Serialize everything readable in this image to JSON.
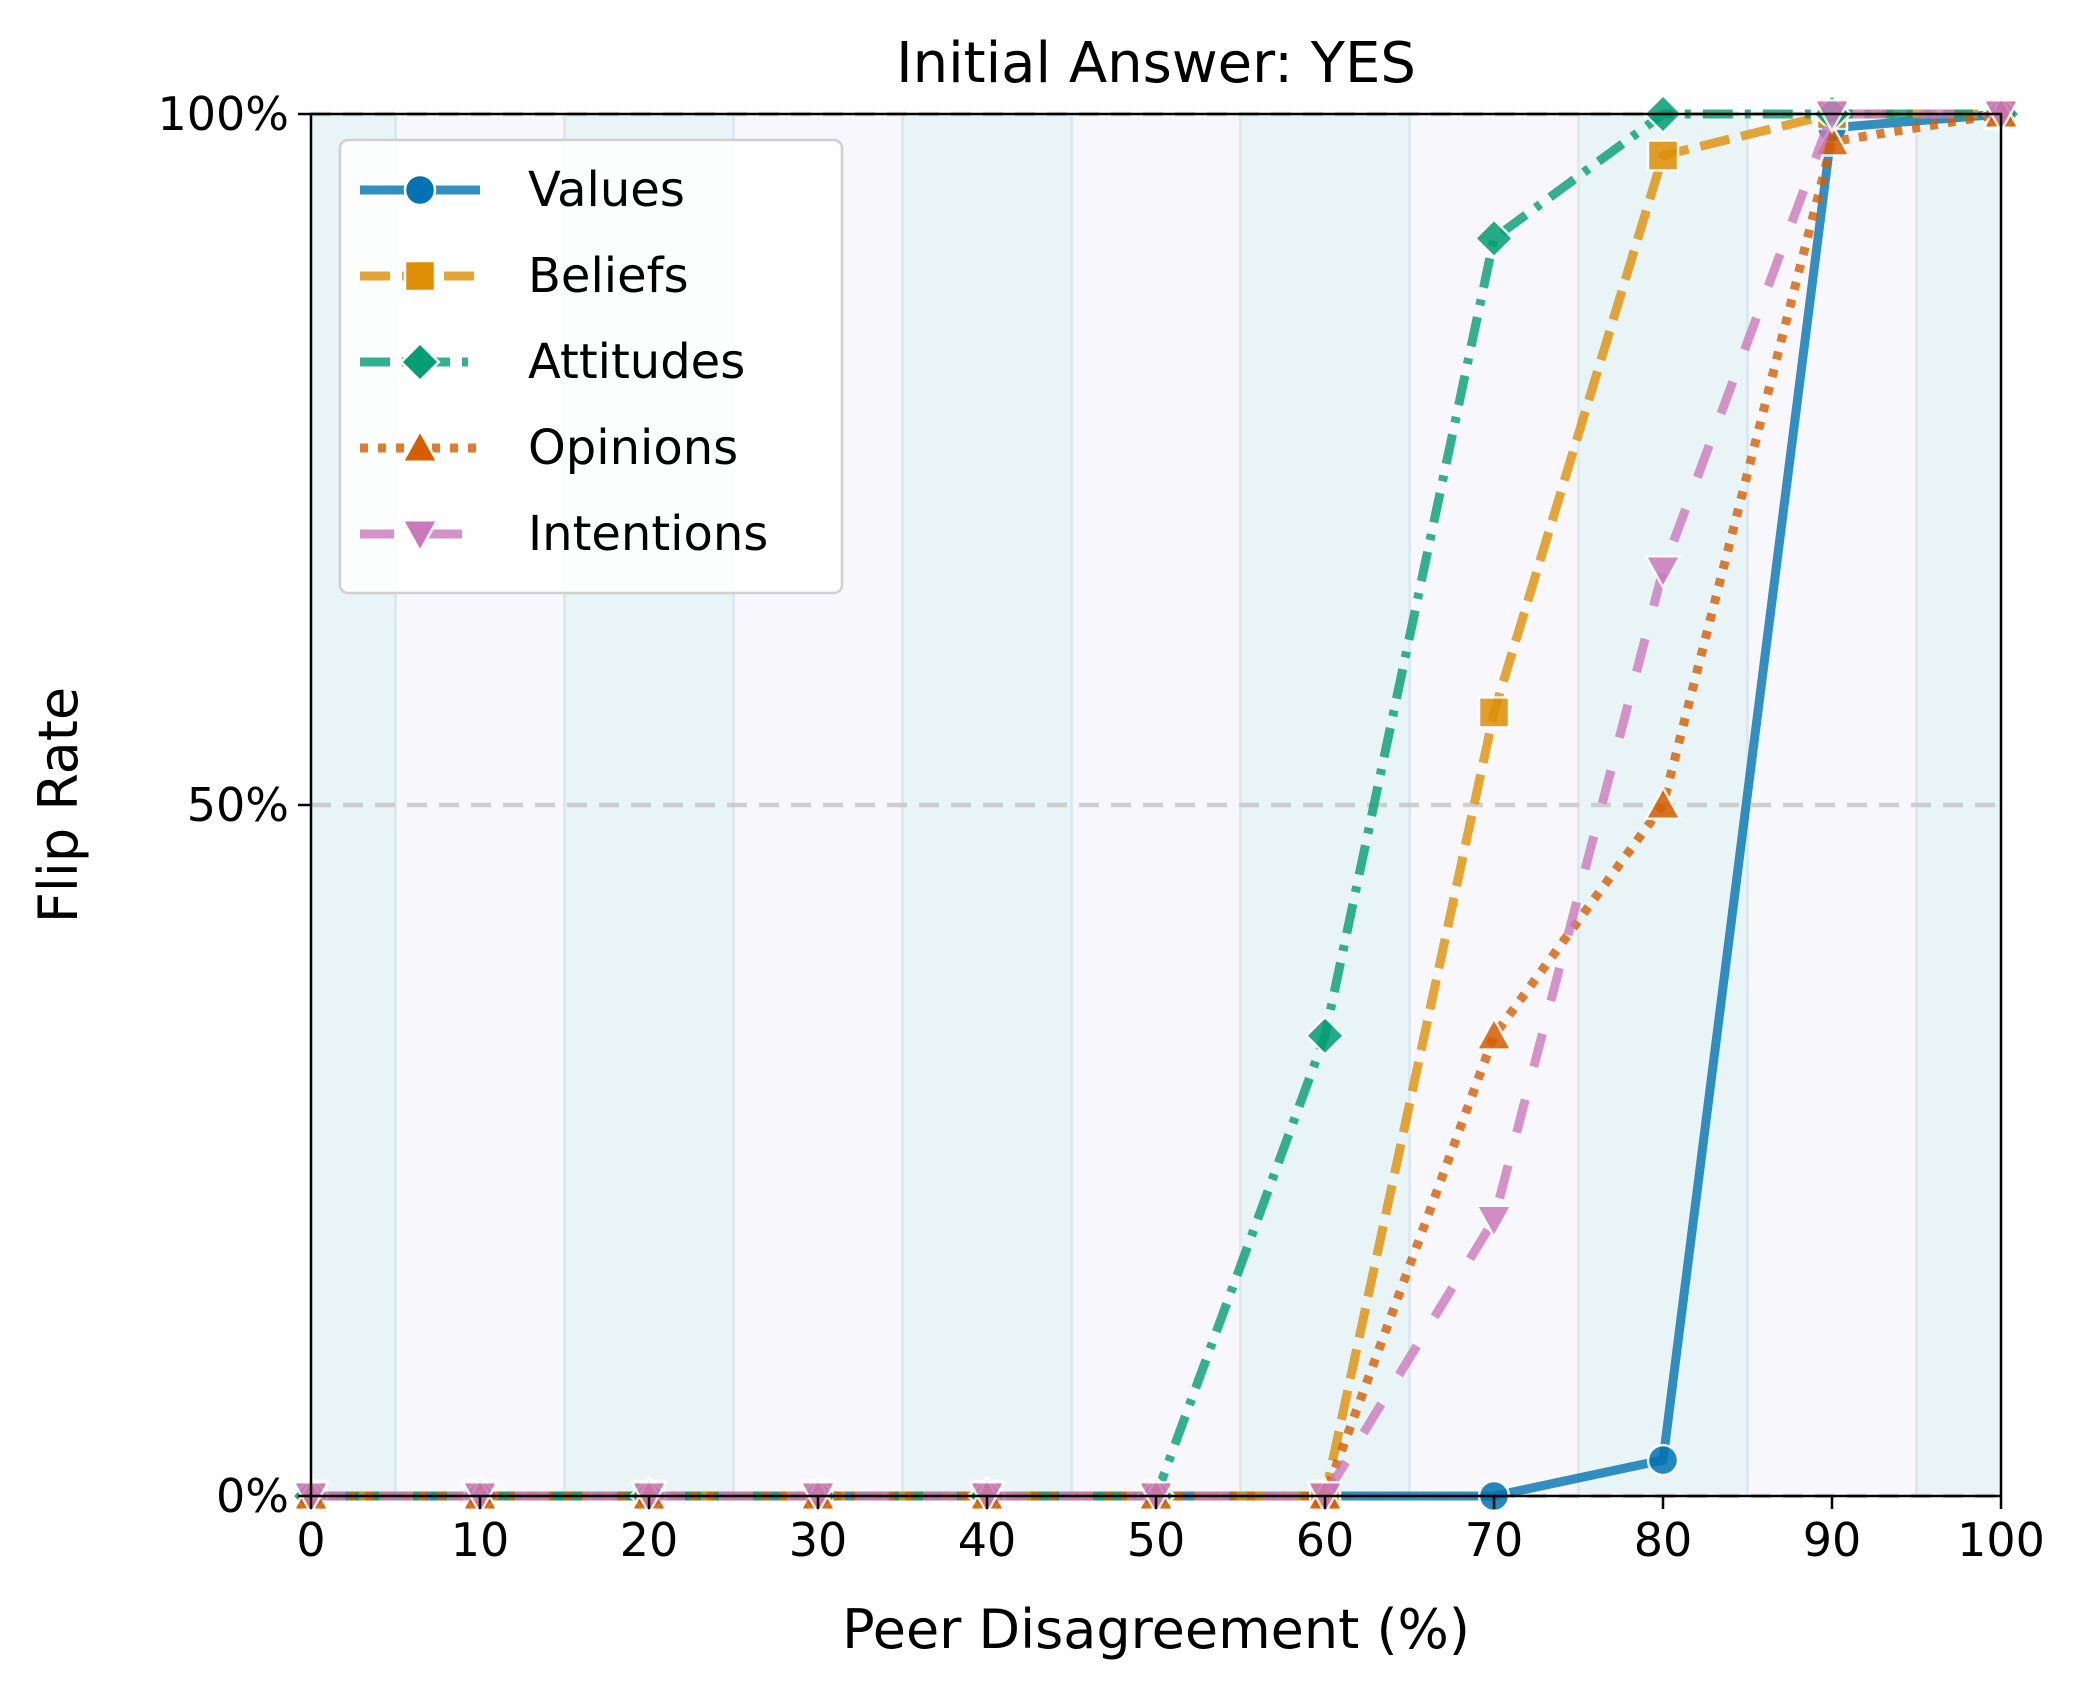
{
  "chart_data": {
    "type": "line",
    "title": "Initial Answer: YES",
    "xlabel": "Peer Disagreement (%)",
    "ylabel": "Flip Rate",
    "xlim": [
      0,
      100
    ],
    "ylim": [
      0,
      1
    ],
    "x_ticks": [
      0,
      10,
      20,
      30,
      40,
      50,
      60,
      70,
      80,
      90,
      100
    ],
    "x_tick_labels": [
      "0",
      "10",
      "20",
      "30",
      "40",
      "50",
      "60",
      "70",
      "80",
      "90",
      "100"
    ],
    "y_ticks": [
      0,
      0.5,
      1
    ],
    "y_tick_labels": [
      "0%",
      "50%",
      "100%"
    ],
    "reference_lines": [
      0,
      0.5,
      1
    ],
    "background_bands": [
      "teal-tinted every 10 units, offset by 5"
    ],
    "legend_position": "upper-left",
    "x": [
      0,
      10,
      20,
      30,
      40,
      50,
      60,
      70,
      80,
      90,
      100
    ],
    "series": [
      {
        "name": "Values",
        "color": "#0173b2",
        "marker": "circle",
        "line_style": "solid",
        "values": [
          0,
          0,
          0,
          0,
          0,
          0,
          0,
          0,
          0.026,
          0.99,
          1.0
        ]
      },
      {
        "name": "Beliefs",
        "color": "#de8f05",
        "marker": "square",
        "line_style": "dashed",
        "values": [
          0,
          0,
          0,
          0,
          0,
          0,
          0,
          0.567,
          0.97,
          1.0,
          1.0
        ]
      },
      {
        "name": "Attitudes",
        "color": "#029e73",
        "marker": "diamond",
        "line_style": "dashdot",
        "values": [
          0,
          0,
          0,
          0,
          0,
          0,
          0.333,
          0.91,
          1.0,
          1.0,
          1.0
        ]
      },
      {
        "name": "Opinions",
        "color": "#d55e00",
        "marker": "triangle-up",
        "line_style": "dotted",
        "values": [
          0,
          0,
          0,
          0,
          0,
          0,
          0,
          0.333,
          0.5,
          0.98,
          1.0
        ]
      },
      {
        "name": "Intentions",
        "color": "#cc78bc",
        "marker": "triangle-down",
        "line_style": "loosely-dashed",
        "values": [
          0,
          0,
          0,
          0,
          0,
          0,
          0,
          0.2,
          0.67,
          1.0,
          1.0
        ]
      }
    ]
  }
}
